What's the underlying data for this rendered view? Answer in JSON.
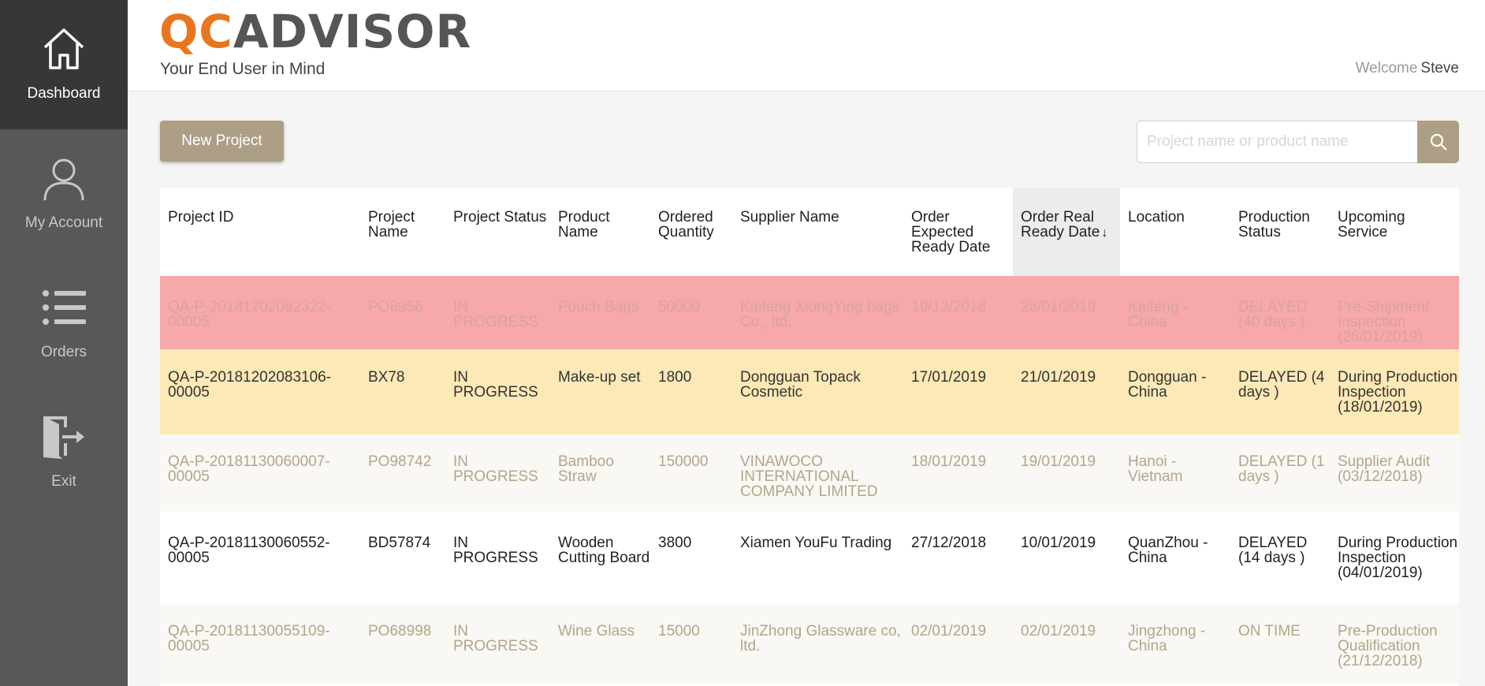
{
  "sidebar": {
    "items": [
      {
        "label": "Dashboard",
        "icon": "home-icon"
      },
      {
        "label": "My Account",
        "icon": "user-icon"
      },
      {
        "label": "Orders",
        "icon": "list-icon"
      },
      {
        "label": "Exit",
        "icon": "exit-icon"
      }
    ]
  },
  "header": {
    "logo_qc": "QC",
    "logo_rest": "ADVISOR",
    "tagline": "Your End User in Mind",
    "welcome_label": "Welcome",
    "user_name": "Steve"
  },
  "toolbar": {
    "new_project_label": "New Project",
    "search_placeholder": "Project name or product name"
  },
  "table": {
    "columns": [
      "Project ID",
      "Project Name",
      "Project Status",
      "Product Name",
      "Ordered Quantity",
      "Supplier Name",
      "Order Expected Ready Date",
      "Order Real Ready Date",
      "Location",
      "Production Status",
      "Upcoming Service"
    ],
    "sort_indicator": "↓",
    "rows": [
      [
        "QA-P-20181202082322-00005",
        "PO8956",
        "IN PROGRESS",
        "Pouch Bags",
        "50000",
        "Kaifeng XiongYing bags Co., ltd.",
        "19/12/2018",
        "28/01/2019",
        "Kaifeng - China",
        "DELAYED (40 days )",
        "Pre-Shipment Inspection (28/01/2019)"
      ],
      [
        "QA-P-20181202083106-00005",
        "BX78",
        "IN PROGRESS",
        "Make-up set",
        "1800",
        "Dongguan Topack Cosmetic",
        "17/01/2019",
        "21/01/2019",
        "Dongguan - China",
        "DELAYED (4 days )",
        "During Production Inspection (18/01/2019)"
      ],
      [
        "QA-P-20181130060007-00005",
        "PO98742",
        "IN PROGRESS",
        "Bamboo Straw",
        "150000",
        "VINAWOCO INTERNATIONAL COMPANY LIMITED",
        "18/01/2019",
        "19/01/2019",
        "Hanoi - Vietnam",
        "DELAYED (1 days )",
        "Supplier Audit (03/12/2018)"
      ],
      [
        "QA-P-20181130060552-00005",
        "BD57874",
        "IN PROGRESS",
        "Wooden Cutting Board",
        "3800",
        "Xiamen YouFu Trading",
        "27/12/2018",
        "10/01/2019",
        "QuanZhou - China",
        "DELAYED (14 days )",
        "During Production Inspection (04/01/2019)"
      ],
      [
        "QA-P-20181130055109-00005",
        "PO68998",
        "IN PROGRESS",
        "Wine Glass",
        "15000",
        "JinZhong Glassware co, ltd.",
        "02/01/2019",
        "02/01/2019",
        "Jingzhong - China",
        "ON TIME",
        "Pre-Production Qualification (21/12/2018)"
      ]
    ]
  },
  "colors": {
    "accent": "#ad9f86",
    "logo_orange": "#e8761f",
    "delayed_high": "#f7a8a8",
    "delayed_mid": "#fde9b6"
  }
}
